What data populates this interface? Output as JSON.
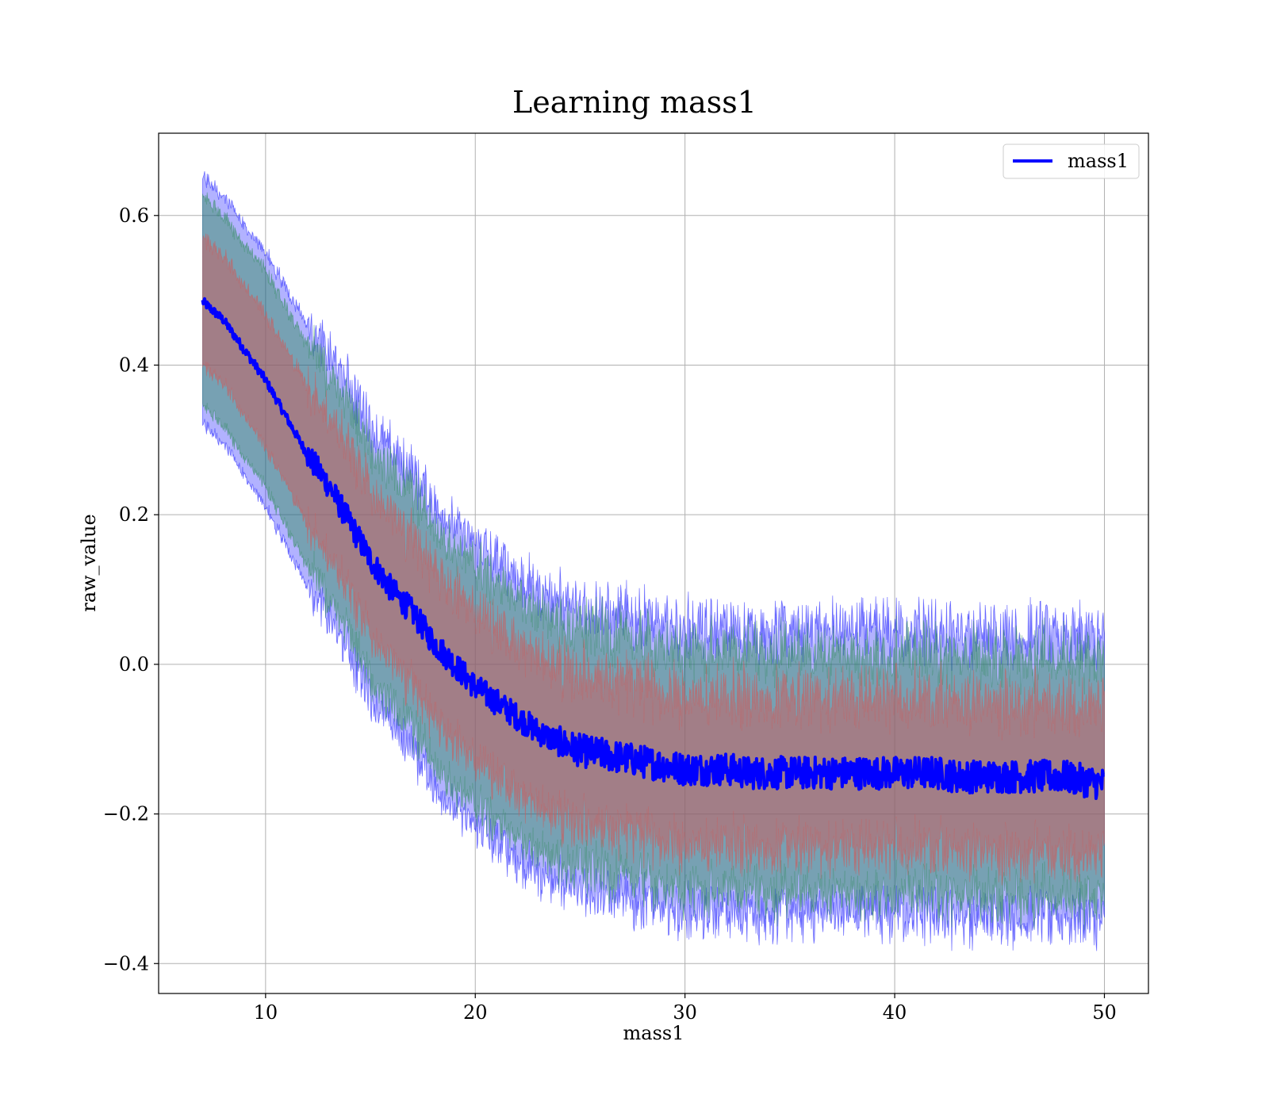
{
  "chart_data": {
    "type": "line",
    "title": "Learning mass1",
    "xlabel": "mass1",
    "ylabel": "raw_value",
    "xlim": [
      4.9,
      52.1
    ],
    "ylim": [
      -0.44,
      0.71
    ],
    "xticks": [
      10,
      20,
      30,
      40,
      50
    ],
    "xtick_labels": [
      "10",
      "20",
      "30",
      "40",
      "50"
    ],
    "yticks": [
      -0.4,
      -0.2,
      0.0,
      0.2,
      0.4,
      0.6
    ],
    "ytick_labels": [
      "−0.4",
      "−0.2",
      "0.0",
      "0.2",
      "0.4",
      "0.6"
    ],
    "grid": true,
    "legend": {
      "position": "top-right",
      "entries": [
        "mass1"
      ]
    },
    "colors": {
      "line": "#0000ff",
      "band_outer": "#0000ff",
      "band_middle": "#2e8b57",
      "band_inner": "#cd5c5c"
    },
    "series": [
      {
        "name": "mass1",
        "x": [
          7,
          8,
          9,
          10,
          11,
          12,
          13,
          14,
          15,
          16,
          17,
          18,
          19,
          20,
          21,
          22,
          23,
          24,
          25,
          26,
          27,
          28,
          29,
          30,
          31,
          32,
          33,
          34,
          35,
          36,
          37,
          38,
          39,
          40,
          41,
          42,
          43,
          44,
          45,
          46,
          47,
          48,
          49,
          50
        ],
        "y": [
          0.485,
          0.46,
          0.42,
          0.38,
          0.33,
          0.28,
          0.24,
          0.19,
          0.14,
          0.1,
          0.07,
          0.03,
          0.0,
          -0.03,
          -0.05,
          -0.07,
          -0.09,
          -0.105,
          -0.115,
          -0.12,
          -0.125,
          -0.13,
          -0.135,
          -0.14,
          -0.14,
          -0.14,
          -0.145,
          -0.145,
          -0.145,
          -0.145,
          -0.145,
          -0.145,
          -0.145,
          -0.145,
          -0.145,
          -0.145,
          -0.15,
          -0.15,
          -0.15,
          -0.15,
          -0.15,
          -0.15,
          -0.155,
          -0.16
        ]
      }
    ],
    "bands": [
      {
        "level": "outer",
        "halfwidth": [
          0.165,
          0.165,
          0.167,
          0.17,
          0.172,
          0.175,
          0.177,
          0.18,
          0.182,
          0.184,
          0.186,
          0.188,
          0.19,
          0.19,
          0.19,
          0.19,
          0.19,
          0.19,
          0.19,
          0.19,
          0.19,
          0.19,
          0.19,
          0.19,
          0.19,
          0.19,
          0.19,
          0.19,
          0.19,
          0.19,
          0.19,
          0.19,
          0.19,
          0.19,
          0.19,
          0.19,
          0.19,
          0.19,
          0.19,
          0.19,
          0.19,
          0.19,
          0.19,
          0.19
        ]
      },
      {
        "level": "middle",
        "halfwidth": [
          0.14,
          0.14,
          0.142,
          0.144,
          0.146,
          0.148,
          0.15,
          0.152,
          0.154,
          0.156,
          0.157,
          0.158,
          0.16,
          0.16,
          0.16,
          0.16,
          0.16,
          0.16,
          0.16,
          0.16,
          0.16,
          0.16,
          0.16,
          0.16,
          0.16,
          0.16,
          0.16,
          0.16,
          0.16,
          0.16,
          0.16,
          0.16,
          0.16,
          0.16,
          0.16,
          0.16,
          0.16,
          0.16,
          0.16,
          0.16,
          0.16,
          0.16,
          0.16,
          0.16
        ]
      },
      {
        "level": "inner",
        "halfwidth": [
          0.085,
          0.085,
          0.087,
          0.089,
          0.09,
          0.092,
          0.094,
          0.096,
          0.097,
          0.098,
          0.099,
          0.1,
          0.1,
          0.1,
          0.1,
          0.1,
          0.1,
          0.1,
          0.1,
          0.1,
          0.1,
          0.1,
          0.1,
          0.1,
          0.1,
          0.1,
          0.1,
          0.1,
          0.1,
          0.1,
          0.1,
          0.1,
          0.1,
          0.1,
          0.1,
          0.1,
          0.1,
          0.1,
          0.1,
          0.1,
          0.1,
          0.1,
          0.1,
          0.1
        ]
      }
    ]
  }
}
